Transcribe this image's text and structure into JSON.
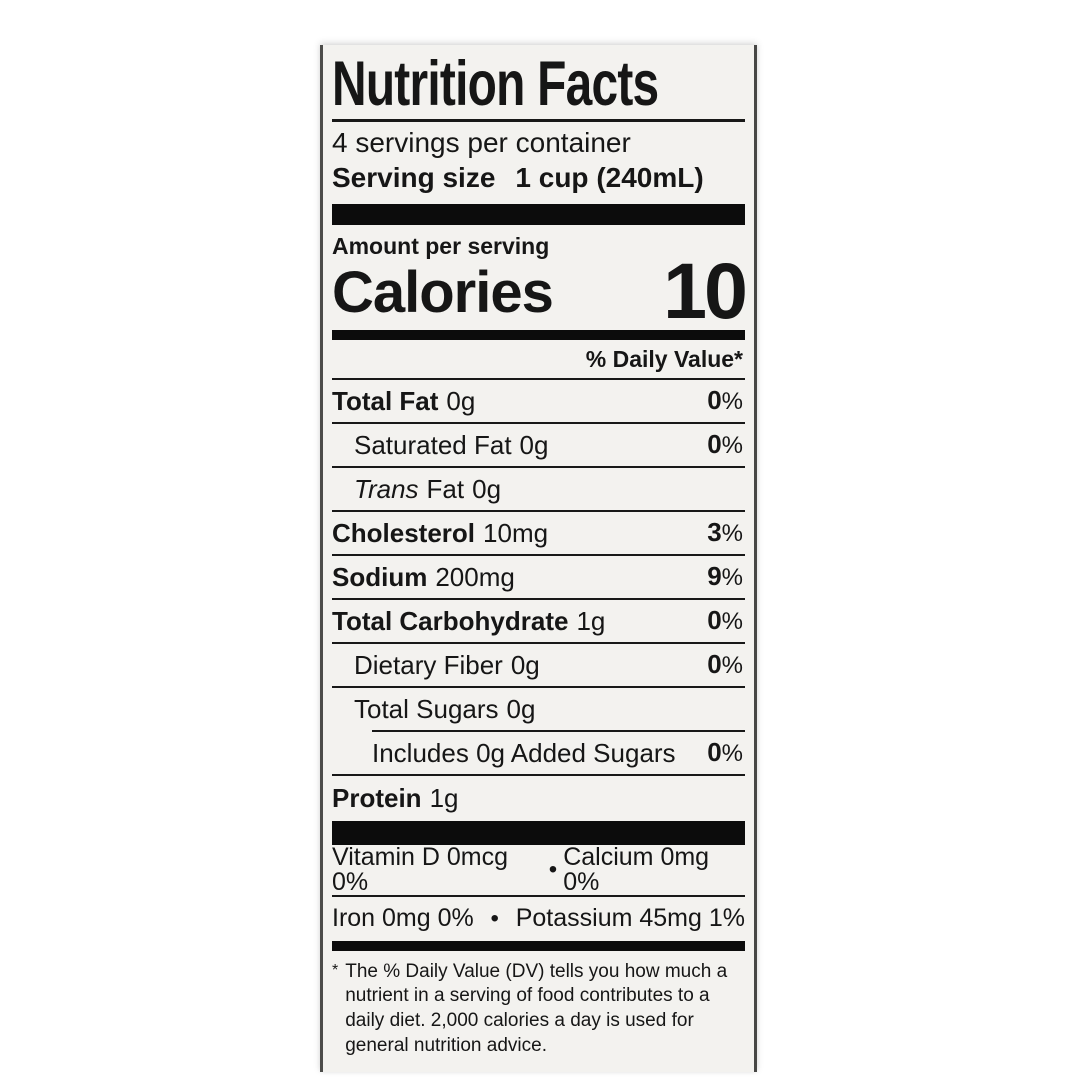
{
  "symbols": {
    "percent": "%",
    "bullet": "•"
  },
  "label": {
    "title": "Nutrition Facts",
    "servings_per_container": "4 servings per container",
    "serving_size_label": "Serving size",
    "serving_size_value": "1 cup (240mL)",
    "amount_per_serving": "Amount per serving",
    "calories_label": "Calories",
    "calories_value": "10",
    "daily_value_header": "% Daily Value*",
    "rows": [
      {
        "name": "Total Fat",
        "amount": "0g",
        "dv": "0"
      },
      {
        "name": "Saturated Fat",
        "amount": "0g",
        "dv": "0"
      },
      {
        "name_italic": "Trans",
        "name_rest": "Fat",
        "amount": "0g"
      },
      {
        "name": "Cholesterol",
        "amount": "10mg",
        "dv": "3"
      },
      {
        "name": "Sodium",
        "amount": "200mg",
        "dv": "9"
      },
      {
        "name": "Total Carbohydrate",
        "amount": "1g",
        "dv": "0"
      },
      {
        "name": "Dietary Fiber",
        "amount": "0g",
        "dv": "0"
      },
      {
        "name": "Total Sugars",
        "amount": "0g"
      },
      {
        "name": "Includes 0g Added Sugars",
        "dv": "0"
      },
      {
        "name": "Protein",
        "amount": "1g"
      }
    ],
    "micronutrients": [
      {
        "left": "Vitamin D 0mcg 0%",
        "right": "Calcium 0mg 0%"
      },
      {
        "left": "Iron 0mg 0%",
        "right": "Potassium 45mg 1%"
      }
    ],
    "footnote_marker": "*",
    "footnote_text": "The % Daily Value (DV) tells you how much a nutrient in a serving of food contributes to a daily diet. 2,000 calories a day is used for general nutrition advice."
  }
}
